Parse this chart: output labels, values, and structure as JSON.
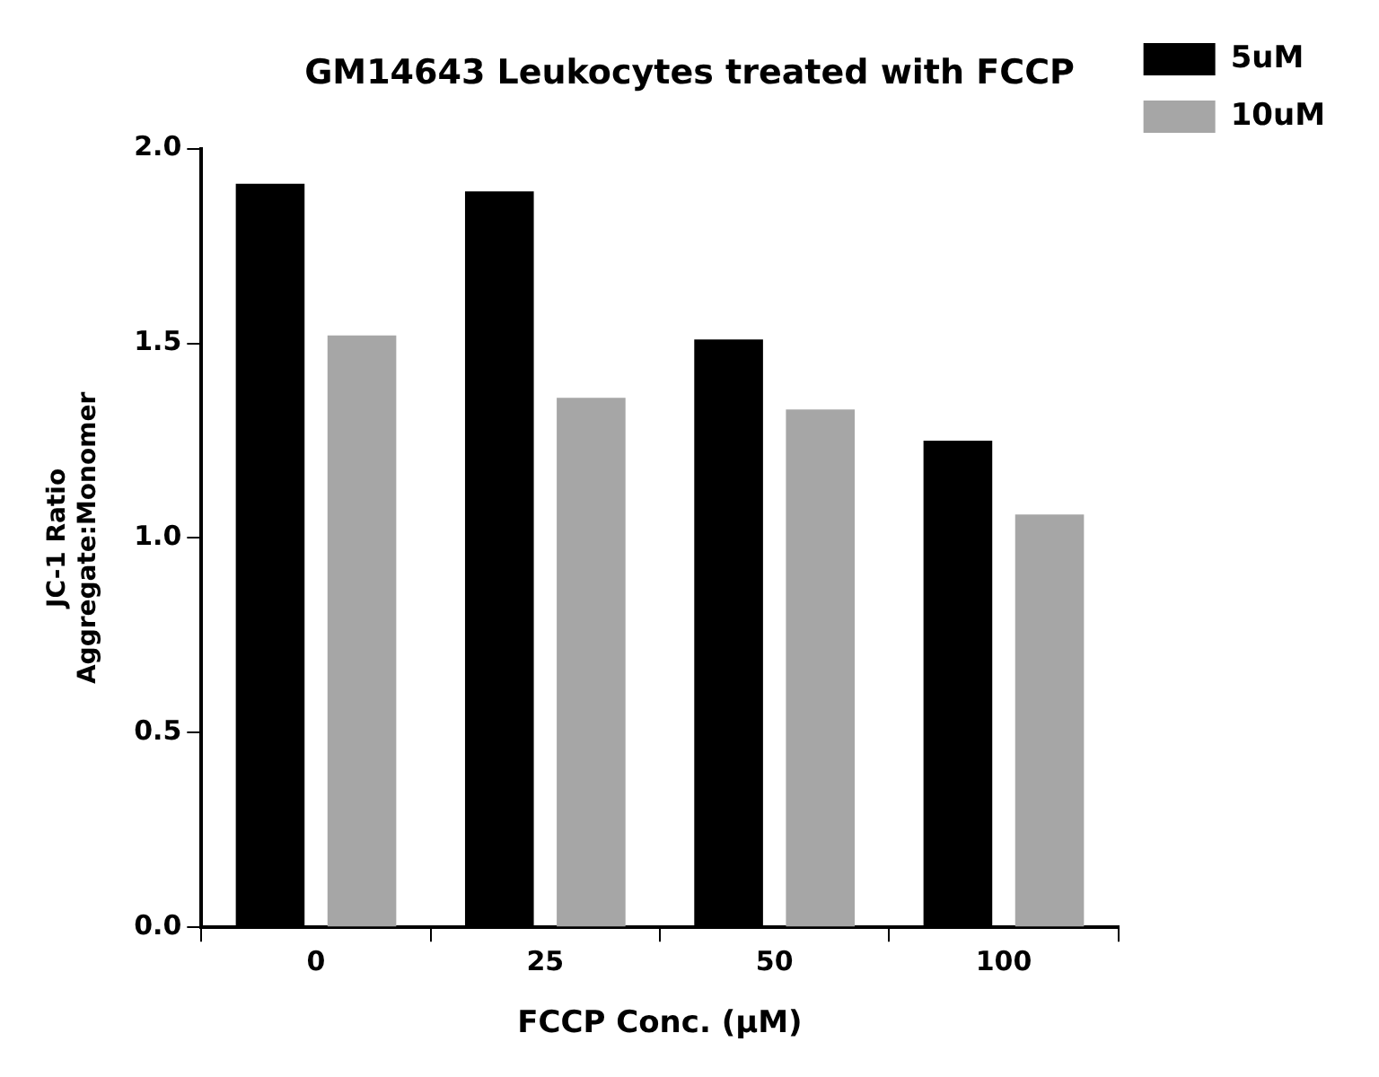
{
  "chart_data": {
    "type": "bar",
    "title": "GM14643 Leukocytes treated with FCCP",
    "xlabel": "FCCP Conc. (μM)",
    "ylabel": "JC-1 Ratio\nAggregate:Monomer",
    "categories": [
      "0",
      "25",
      "50",
      "100"
    ],
    "series": [
      {
        "name": "5uM",
        "color": "#000000",
        "values": [
          1.91,
          1.89,
          1.51,
          1.25
        ]
      },
      {
        "name": "10uM",
        "color": "#a6a6a6",
        "values": [
          1.52,
          1.36,
          1.33,
          1.06
        ]
      }
    ],
    "ylim": [
      0,
      2
    ],
    "yticks": [
      {
        "value": 0,
        "label": "0.0"
      },
      {
        "value": 0.5,
        "label": "0.5"
      },
      {
        "value": 1,
        "label": "1.0"
      },
      {
        "value": 1.5,
        "label": "1.5"
      },
      {
        "value": 2,
        "label": "2.0"
      }
    ],
    "grid": false,
    "legend": "top right"
  }
}
